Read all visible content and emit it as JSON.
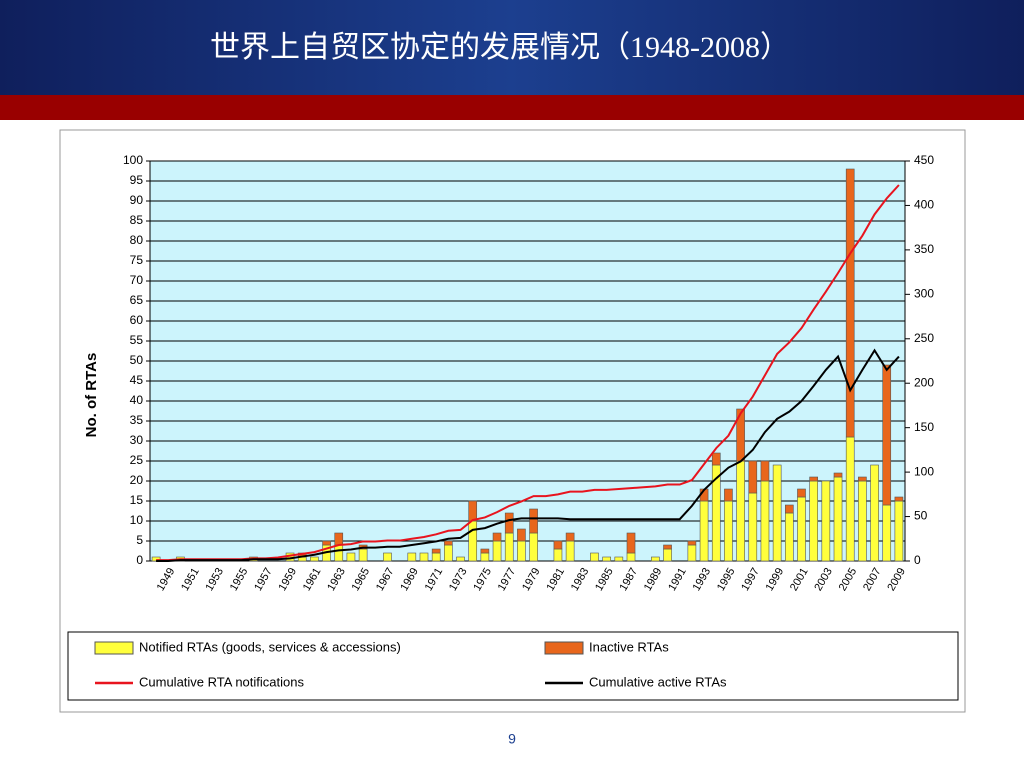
{
  "header": {
    "title": "世界上自贸区协定的发展情况（1948-2008）"
  },
  "page_number": "9",
  "chart_data": {
    "type": "bar",
    "stacked": true,
    "y_label": "No. of RTAs",
    "categories": [
      null,
      "1949",
      null,
      "1951",
      null,
      "1953",
      null,
      "1955",
      null,
      "1957",
      null,
      "1959",
      null,
      "1961",
      null,
      "1963",
      null,
      "1965",
      null,
      "1967",
      null,
      "1969",
      null,
      "1971",
      null,
      "1973",
      null,
      "1975",
      null,
      "1977",
      null,
      "1979",
      null,
      "1981",
      null,
      "1983",
      null,
      "1985",
      null,
      "1987",
      null,
      "1989",
      null,
      "1991",
      null,
      "1993",
      null,
      "1995",
      null,
      "1997",
      null,
      "1999",
      null,
      "2001",
      null,
      "2003",
      null,
      "2005",
      null,
      "2007",
      null,
      "2009"
    ],
    "ylim": [
      0,
      100
    ],
    "yticks": [
      0,
      5,
      10,
      15,
      20,
      25,
      30,
      35,
      40,
      45,
      50,
      55,
      60,
      65,
      70,
      75,
      80,
      85,
      90,
      95,
      100
    ],
    "y2lim": [
      0,
      450
    ],
    "y2ticks": [
      0,
      50,
      100,
      150,
      200,
      250,
      300,
      350,
      400,
      450
    ],
    "grid": true,
    "legend": "bottom",
    "series": [
      {
        "name": "Notified RTAs (goods, services & accessions)",
        "type": "bar",
        "color": "#ffff3c",
        "values": [
          1,
          0,
          1,
          0,
          0,
          0,
          0,
          0,
          1,
          0,
          0,
          2,
          1,
          1,
          4,
          4,
          2,
          3,
          0,
          2,
          0,
          2,
          2,
          2,
          4,
          1,
          10,
          2,
          5,
          7,
          5,
          7,
          0,
          3,
          5,
          0,
          2,
          1,
          1,
          2,
          0,
          1,
          3,
          0,
          4,
          15,
          24,
          15,
          25,
          17,
          20,
          24,
          12,
          16,
          20,
          20,
          21,
          31,
          20,
          24,
          14,
          15
        ]
      },
      {
        "name": "Inactive RTAs",
        "type": "bar",
        "color": "#e8661c",
        "values": [
          0,
          0,
          0,
          0,
          0,
          0,
          0,
          0,
          0,
          0,
          0,
          0,
          1,
          0,
          1,
          3,
          0,
          1,
          0,
          0,
          0,
          0,
          0,
          1,
          1,
          0,
          5,
          1,
          2,
          5,
          3,
          6,
          0,
          2,
          2,
          0,
          0,
          0,
          0,
          5,
          0,
          0,
          1,
          0,
          1,
          3,
          3,
          3,
          13,
          8,
          5,
          0,
          2,
          2,
          1,
          0,
          1,
          67,
          1,
          0,
          35,
          1
        ]
      },
      {
        "name": "Cumulative RTA notifications",
        "type": "line",
        "axis": "y2",
        "color": "#e8141e",
        "values": [
          1,
          1,
          2,
          2,
          2,
          2,
          2,
          2,
          3,
          3,
          4,
          6,
          8,
          10,
          14,
          18,
          19,
          22,
          22,
          23,
          23,
          25,
          27,
          30,
          34,
          35,
          46,
          49,
          55,
          62,
          67,
          73,
          73,
          75,
          78,
          78,
          80,
          80,
          81,
          82,
          83,
          84,
          86,
          86,
          91,
          109,
          127,
          141,
          166,
          185,
          209,
          233,
          246,
          262,
          283,
          303,
          324,
          346,
          366,
          390,
          408,
          423
        ]
      },
      {
        "name": "Cumulative active RTAs",
        "type": "line",
        "axis": "y2",
        "color": "#000000",
        "values": [
          0,
          0,
          1,
          1,
          1,
          1,
          1,
          1,
          2,
          2,
          2,
          3,
          5,
          7,
          10,
          12,
          13,
          15,
          15,
          16,
          16,
          18,
          20,
          22,
          25,
          26,
          35,
          37,
          42,
          46,
          48,
          48,
          48,
          48,
          47,
          47,
          47,
          47,
          47,
          47,
          47,
          47,
          47,
          47,
          62,
          80,
          93,
          105,
          112,
          125,
          145,
          160,
          168,
          180,
          197,
          215,
          230,
          192,
          215,
          237,
          215,
          230
        ]
      }
    ]
  }
}
